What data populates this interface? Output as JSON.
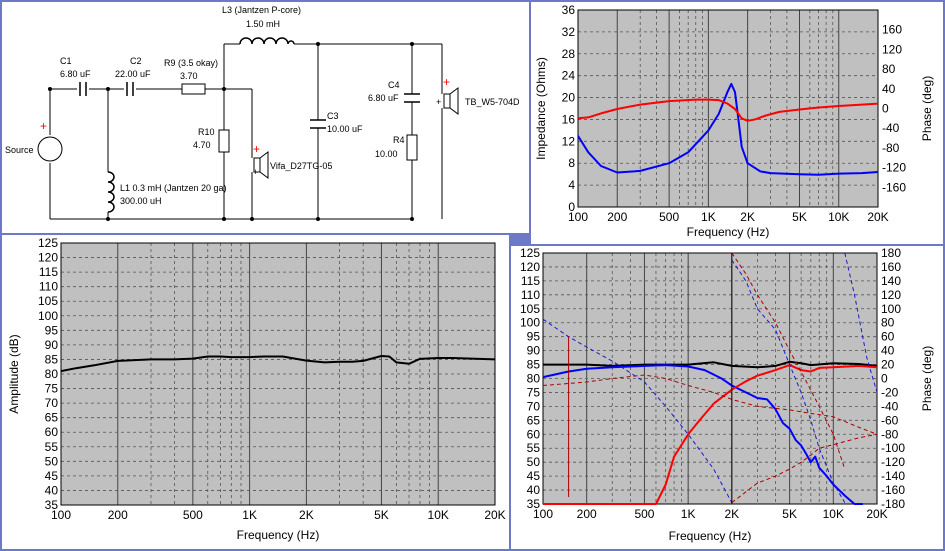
{
  "schematic": {
    "components": [
      {
        "id": "L3",
        "line1": "L3 (Jantzen P-core)",
        "line2": "1.50 mH"
      },
      {
        "id": "C1",
        "line1": "C1",
        "line2": "6.80 uF"
      },
      {
        "id": "C2",
        "line1": "C2",
        "line2": "22.00 uF"
      },
      {
        "id": "R9",
        "line1": "R9 (3.5 okay)",
        "line2": "3.70"
      },
      {
        "id": "R10",
        "line1": "R10",
        "line2": "4.70"
      },
      {
        "id": "L1",
        "line1": "L1 0.3 mH (Jantzen 20 ga)",
        "line2": "300.00 uH"
      },
      {
        "id": "C3",
        "line1": "C3",
        "line2": "10.00 uF"
      },
      {
        "id": "C4",
        "line1": "C4",
        "line2": "6.80 uF"
      },
      {
        "id": "R4",
        "line1": "R4",
        "line2": "10.00"
      }
    ],
    "source_label": "Source",
    "tweeter_label": "Vifa_D27TG-05",
    "woofer_label": "TB_W5-704D",
    "plus_sign": "+"
  },
  "chart_data": [
    {
      "id": "impedance",
      "type": "line",
      "xscale": "log",
      "xlim": [
        100,
        20000
      ],
      "xticks": [
        {
          "v": 100,
          "t": "100"
        },
        {
          "v": 200,
          "t": "200"
        },
        {
          "v": 500,
          "t": "500"
        },
        {
          "v": 1000,
          "t": "1K"
        },
        {
          "v": 2000,
          "t": "2K"
        },
        {
          "v": 5000,
          "t": "5K"
        },
        {
          "v": 10000,
          "t": "10K"
        },
        {
          "v": 20000,
          "t": "20K"
        }
      ],
      "ylim": [
        0,
        36
      ],
      "yticks": [
        0,
        4,
        8,
        12,
        16,
        20,
        24,
        28,
        32,
        36
      ],
      "y2lim": [
        -200,
        200
      ],
      "y2ticks": [
        -160,
        -120,
        -80,
        -40,
        0,
        40,
        80,
        120,
        160
      ],
      "xlabel": "Frequency (Hz)",
      "ylabel": "Impedance (Ohms)",
      "y2label": "Phase (deg)",
      "grid": true,
      "series": [
        {
          "color": "#0000ff",
          "axis": "y",
          "x": [
            100,
            120,
            150,
            200,
            300,
            500,
            700,
            1000,
            1200,
            1400,
            1500,
            1600,
            1700,
            1800,
            2000,
            2500,
            3000,
            5000,
            7000,
            10000,
            15000,
            20000
          ],
          "y": [
            13,
            10,
            7.5,
            6.3,
            6.6,
            8,
            10,
            14,
            17,
            21,
            22.5,
            21,
            16,
            11,
            8,
            6.5,
            6.2,
            6,
            5.9,
            6.1,
            6.2,
            6.4
          ]
        },
        {
          "color": "#ff0000",
          "axis": "y2",
          "x": [
            100,
            120,
            150,
            200,
            300,
            500,
            800,
            1000,
            1200,
            1400,
            1600,
            1800,
            2000,
            2300,
            2700,
            3500,
            5000,
            7000,
            10000,
            15000,
            20000
          ],
          "y": [
            -20,
            -18,
            -10,
            -1,
            8,
            15,
            18,
            18,
            17,
            10,
            -1,
            -20,
            -25,
            -22,
            -15,
            -7,
            -2,
            2,
            5,
            8,
            10
          ]
        }
      ]
    },
    {
      "id": "amplitude",
      "type": "line",
      "xscale": "log",
      "xlim": [
        100,
        20000
      ],
      "xticks": [
        {
          "v": 100,
          "t": "100"
        },
        {
          "v": 200,
          "t": "200"
        },
        {
          "v": 500,
          "t": "500"
        },
        {
          "v": 1000,
          "t": "1K"
        },
        {
          "v": 2000,
          "t": "2K"
        },
        {
          "v": 5000,
          "t": "5K"
        },
        {
          "v": 10000,
          "t": "10K"
        },
        {
          "v": 20000,
          "t": "20K"
        }
      ],
      "ylim": [
        35,
        125
      ],
      "yticks": [
        35,
        40,
        45,
        50,
        55,
        60,
        65,
        70,
        75,
        80,
        85,
        90,
        95,
        100,
        105,
        110,
        115,
        120,
        125
      ],
      "xlabel": "Frequency (Hz)",
      "ylabel": "Amplitude (dB)",
      "grid": true,
      "series": [
        {
          "color": "#000000",
          "x": [
            100,
            120,
            150,
            200,
            300,
            400,
            500,
            600,
            700,
            800,
            1000,
            1200,
            1500,
            2000,
            2500,
            3000,
            3500,
            4000,
            5000,
            5500,
            6000,
            7000,
            8000,
            10000,
            12000,
            15000,
            20000
          ],
          "y": [
            81,
            82,
            83,
            84.5,
            85,
            85,
            85.3,
            86,
            86,
            85.8,
            85.8,
            86,
            86,
            84.6,
            84,
            84.2,
            84.2,
            84.5,
            86.2,
            86,
            84,
            83.5,
            85.2,
            85.5,
            85.5,
            85.3,
            85
          ]
        }
      ]
    },
    {
      "id": "driver-response",
      "type": "line",
      "xscale": "log",
      "xlim": [
        100,
        20000
      ],
      "xticks": [
        {
          "v": 100,
          "t": "100"
        },
        {
          "v": 200,
          "t": "200"
        },
        {
          "v": 500,
          "t": "500"
        },
        {
          "v": 1000,
          "t": "1K"
        },
        {
          "v": 2000,
          "t": "2K"
        },
        {
          "v": 5000,
          "t": "5K"
        },
        {
          "v": 10000,
          "t": "10K"
        },
        {
          "v": 20000,
          "t": "20K"
        }
      ],
      "ylim": [
        35,
        125
      ],
      "yticks": [
        35,
        40,
        45,
        50,
        55,
        60,
        65,
        70,
        75,
        80,
        85,
        90,
        95,
        100,
        105,
        110,
        115,
        120,
        125
      ],
      "y2lim": [
        -180,
        180
      ],
      "y2ticks": [
        -180,
        -160,
        -140,
        -120,
        -100,
        -80,
        -60,
        -40,
        -20,
        0,
        20,
        40,
        60,
        80,
        100,
        120,
        140,
        160,
        180
      ],
      "xlabel": "Frequency (Hz)",
      "y2label": "Phase (deg)",
      "grid": true,
      "series": [
        {
          "color": "#000000",
          "width": 2,
          "axis": "y",
          "x": [
            100,
            200,
            300,
            500,
            700,
            1000,
            1500,
            2000,
            3000,
            4000,
            5000,
            6000,
            7000,
            10000,
            15000,
            20000
          ],
          "y": [
            85,
            85,
            84.5,
            85,
            85,
            85,
            85.8,
            84.5,
            84,
            84.5,
            86,
            85.5,
            84.8,
            85.5,
            85.2,
            84.5
          ]
        },
        {
          "color": "#0000ff",
          "width": 2,
          "axis": "y",
          "x": [
            100,
            150,
            200,
            300,
            500,
            700,
            1000,
            1300,
            1700,
            2000,
            2500,
            3000,
            3500,
            4000,
            4500,
            5000,
            5500,
            6000,
            6500,
            7000,
            7500,
            8000,
            9000,
            10000,
            12000,
            14000,
            16000
          ],
          "y": [
            80.5,
            82.5,
            83.5,
            84,
            84.5,
            84.8,
            84.3,
            83,
            80,
            77.5,
            75,
            73,
            72.5,
            69,
            64,
            62,
            58,
            56,
            53,
            50,
            52,
            48,
            45,
            42,
            38,
            35,
            35
          ]
        },
        {
          "color": "#ff0000",
          "width": 2,
          "axis": "y",
          "x": [
            100,
            600,
            700,
            800,
            1000,
            1200,
            1500,
            2000,
            2500,
            3000,
            4000,
            5000,
            6000,
            7000,
            8000,
            10000,
            15000,
            20000
          ],
          "y": [
            35,
            35,
            42,
            52,
            60,
            65,
            71,
            76,
            79,
            81,
            83,
            84.8,
            83,
            82.5,
            83.8,
            84,
            84.5,
            84
          ]
        },
        {
          "color": "#aa0000",
          "width": 1,
          "dash": "4,3",
          "axis": "y2",
          "x": [
            100,
            200,
            300,
            500,
            700,
            1000,
            1500,
            2000,
            3000,
            5000,
            7000,
            10000,
            15000,
            20000
          ],
          "y": [
            -10,
            -5,
            0,
            5,
            0,
            -10,
            -20,
            -30,
            -40,
            -45,
            -50,
            -55,
            -70,
            -80
          ]
        },
        {
          "color": "#1a1acc",
          "width": 1,
          "dash": "4,3",
          "axis": "y2",
          "x": [
            100,
            150,
            200,
            300,
            500,
            700,
            1000,
            1500,
            2000
          ],
          "y": [
            85,
            60,
            45,
            25,
            -5,
            -40,
            -80,
            -130,
            -178
          ]
        },
        {
          "color": "#aa0000",
          "width": 1,
          "dash": "4,3",
          "axis": "y2",
          "x": [
            2000,
            3000,
            4000,
            5000,
            6000,
            7000,
            8000,
            10000,
            15000,
            20000
          ],
          "y": [
            -178,
            -150,
            -140,
            -130,
            -120,
            -110,
            -100,
            -95,
            -85,
            -80
          ]
        },
        {
          "color": "#aa0000",
          "width": 1,
          "dash": "4,3",
          "axis": "y2",
          "x": [
            2000,
            2500,
            3000,
            4000,
            5000,
            6000,
            8000,
            10000,
            12000
          ],
          "y": [
            180,
            150,
            120,
            80,
            40,
            10,
            -40,
            -80,
            -130
          ]
        },
        {
          "color": "#1a1acc",
          "width": 1,
          "dash": "4,3",
          "axis": "y2",
          "x": [
            2000,
            2500,
            3000,
            4000,
            5000,
            6000,
            7000,
            8000,
            10000,
            12000
          ],
          "y": [
            170,
            140,
            100,
            70,
            20,
            -20,
            -60,
            -100,
            -150,
            -178
          ]
        },
        {
          "color": "#1a1acc",
          "width": 1,
          "dash": "4,3",
          "axis": "y2",
          "x": [
            12000,
            14000,
            17000,
            20000
          ],
          "y": [
            180,
            120,
            30,
            -20
          ]
        },
        {
          "color": "#aa0000",
          "width": 1,
          "axis": "y2",
          "x": [
            150,
            150
          ],
          "y": [
            -170,
            60
          ]
        },
        {
          "color": "#111111",
          "width": 1,
          "axis": "y2",
          "x": [
            2000,
            2000
          ],
          "y": [
            -180,
            180
          ]
        }
      ]
    }
  ]
}
